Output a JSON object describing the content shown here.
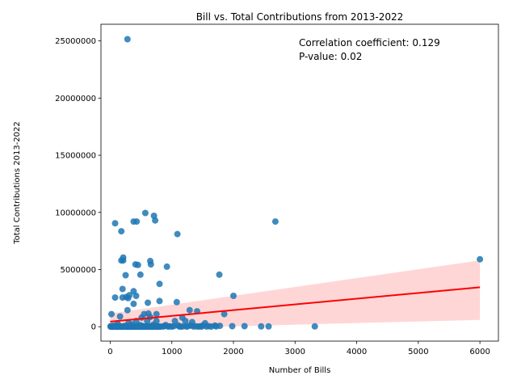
{
  "chart_data": {
    "type": "scatter",
    "title": "Bill vs. Total Contributions from 2013-2022",
    "xlabel": "Number of Bills",
    "ylabel": "Total Contributions 2013-2022",
    "xlim": [
      -150,
      6300
    ],
    "ylim": [
      -1260000,
      26460000
    ],
    "xticks": [
      0,
      1000,
      2000,
      3000,
      4000,
      5000,
      6000
    ],
    "xtick_labels": [
      "0",
      "1000",
      "2000",
      "3000",
      "4000",
      "5000",
      "6000"
    ],
    "yticks": [
      0,
      5000000,
      10000000,
      15000000,
      20000000,
      25000000
    ],
    "ytick_labels": [
      "0",
      "5000000",
      "10000000",
      "15000000",
      "20000000",
      "25000000"
    ],
    "grid": false,
    "point_color": "#1f77b4",
    "regression_color": "#ff0000",
    "ci_color": "#ffcccc",
    "annotations": [
      "Correlation coefficient: 0.129",
      "P-value: 0.02"
    ],
    "regression": {
      "x": [
        0,
        6000
      ],
      "y": [
        450000,
        3450000
      ],
      "ci_lower": [
        -250000,
        600000
      ],
      "ci_upper": [
        1150000,
        5800000
      ]
    },
    "series": [
      {
        "points": [
          [
            280,
            25150000
          ],
          [
            80,
            9050000
          ],
          [
            430,
            9200000
          ],
          [
            380,
            9200000
          ],
          [
            570,
            9950000
          ],
          [
            710,
            9700000
          ],
          [
            730,
            9300000
          ],
          [
            2680,
            9200000
          ],
          [
            180,
            8350000
          ],
          [
            1090,
            8100000
          ],
          [
            210,
            6050000
          ],
          [
            180,
            5800000
          ],
          [
            210,
            5800000
          ],
          [
            650,
            5750000
          ],
          [
            660,
            5450000
          ],
          [
            410,
            5450000
          ],
          [
            450,
            5400000
          ],
          [
            920,
            5250000
          ],
          [
            6000,
            5900000
          ],
          [
            1770,
            4550000
          ],
          [
            250,
            4500000
          ],
          [
            490,
            4550000
          ],
          [
            800,
            3750000
          ],
          [
            200,
            3300000
          ],
          [
            380,
            3100000
          ],
          [
            420,
            2700000
          ],
          [
            2000,
            2700000
          ],
          [
            80,
            2550000
          ],
          [
            200,
            2550000
          ],
          [
            290,
            2500000
          ],
          [
            260,
            2600000
          ],
          [
            310,
            2750000
          ],
          [
            380,
            2000000
          ],
          [
            610,
            2100000
          ],
          [
            800,
            2250000
          ],
          [
            1080,
            2150000
          ],
          [
            280,
            1450000
          ],
          [
            550,
            1100000
          ],
          [
            620,
            1150000
          ],
          [
            750,
            1100000
          ],
          [
            1290,
            1450000
          ],
          [
            1410,
            1350000
          ],
          [
            1850,
            1100000
          ],
          [
            20,
            1100000
          ],
          [
            160,
            900000
          ],
          [
            650,
            850000
          ],
          [
            1170,
            800000
          ],
          [
            510,
            800000
          ],
          [
            420,
            500000
          ],
          [
            600,
            500000
          ],
          [
            750,
            500000
          ],
          [
            1050,
            500000
          ],
          [
            1220,
            500000
          ],
          [
            1330,
            400000
          ],
          [
            1540,
            300000
          ],
          [
            300,
            350000
          ],
          [
            120,
            250000
          ],
          [
            350,
            200000
          ],
          [
            480,
            150000
          ],
          [
            700,
            180000
          ],
          [
            900,
            150000
          ],
          [
            1100,
            120000
          ],
          [
            1300,
            100000
          ],
          [
            1500,
            100000
          ],
          [
            1700,
            100000
          ],
          [
            1780,
            80000
          ],
          [
            1980,
            50000
          ],
          [
            2180,
            50000
          ],
          [
            2450,
            30000
          ],
          [
            2570,
            30000
          ],
          [
            3320,
            30000
          ],
          [
            10,
            50000
          ],
          [
            20,
            30000
          ],
          [
            30,
            10000
          ],
          [
            40,
            80000
          ],
          [
            50,
            20000
          ],
          [
            60,
            40000
          ],
          [
            70,
            60000
          ],
          [
            80,
            15000
          ],
          [
            90,
            25000
          ],
          [
            100,
            35000
          ],
          [
            110,
            45000
          ],
          [
            130,
            5000
          ],
          [
            140,
            70000
          ],
          [
            150,
            30000
          ],
          [
            170,
            20000
          ],
          [
            190,
            10000
          ],
          [
            220,
            40000
          ],
          [
            240,
            60000
          ],
          [
            260,
            15000
          ],
          [
            270,
            25000
          ],
          [
            300,
            8000
          ],
          [
            320,
            50000
          ],
          [
            340,
            20000
          ],
          [
            360,
            10000
          ],
          [
            390,
            30000
          ],
          [
            400,
            5000
          ],
          [
            440,
            40000
          ],
          [
            460,
            20000
          ],
          [
            500,
            10000
          ],
          [
            520,
            60000
          ],
          [
            540,
            20000
          ],
          [
            560,
            5000
          ],
          [
            580,
            30000
          ],
          [
            620,
            10000
          ],
          [
            640,
            50000
          ],
          [
            680,
            20000
          ],
          [
            720,
            40000
          ],
          [
            760,
            10000
          ],
          [
            780,
            30000
          ],
          [
            820,
            5000
          ],
          [
            860,
            20000
          ],
          [
            880,
            50000
          ],
          [
            940,
            10000
          ],
          [
            960,
            30000
          ],
          [
            1000,
            15000
          ],
          [
            1030,
            40000
          ],
          [
            1120,
            20000
          ],
          [
            1150,
            5000
          ],
          [
            1180,
            30000
          ],
          [
            1240,
            10000
          ],
          [
            1260,
            50000
          ],
          [
            1350,
            20000
          ],
          [
            1380,
            40000
          ],
          [
            1420,
            10000
          ],
          [
            1450,
            30000
          ],
          [
            1480,
            5000
          ],
          [
            1560,
            20000
          ],
          [
            1600,
            40000
          ],
          [
            1640,
            10000
          ],
          [
            1720,
            30000
          ],
          [
            15,
            5000
          ],
          [
            35,
            2000
          ],
          [
            55,
            8000
          ],
          [
            75,
            3000
          ],
          [
            95,
            6000
          ],
          [
            115,
            2000
          ],
          [
            135,
            9000
          ],
          [
            155,
            4000
          ],
          [
            175,
            7000
          ],
          [
            195,
            1000
          ],
          [
            215,
            5000
          ],
          [
            235,
            3000
          ],
          [
            255,
            8000
          ],
          [
            275,
            2000
          ],
          [
            295,
            6000
          ],
          [
            315,
            4000
          ],
          [
            335,
            9000
          ],
          [
            355,
            1000
          ],
          [
            375,
            7000
          ],
          [
            395,
            3000
          ],
          [
            415,
            5000
          ],
          [
            435,
            2000
          ],
          [
            455,
            8000
          ],
          [
            475,
            4000
          ],
          [
            495,
            6000
          ],
          [
            515,
            1000
          ],
          [
            535,
            9000
          ],
          [
            555,
            3000
          ],
          [
            575,
            7000
          ],
          [
            595,
            2000
          ],
          [
            615,
            5000
          ],
          [
            635,
            8000
          ],
          [
            655,
            4000
          ],
          [
            675,
            6000
          ],
          [
            695,
            1000
          ],
          [
            715,
            9000
          ],
          [
            735,
            3000
          ],
          [
            755,
            7000
          ],
          [
            775,
            2000
          ],
          [
            795,
            5000
          ],
          [
            5,
            12000
          ],
          [
            25,
            18000
          ],
          [
            45,
            14000
          ],
          [
            65,
            16000
          ],
          [
            85,
            11000
          ],
          [
            105,
            19000
          ],
          [
            125,
            13000
          ],
          [
            145,
            17000
          ],
          [
            165,
            12000
          ],
          [
            185,
            15000
          ]
        ]
      }
    ]
  }
}
